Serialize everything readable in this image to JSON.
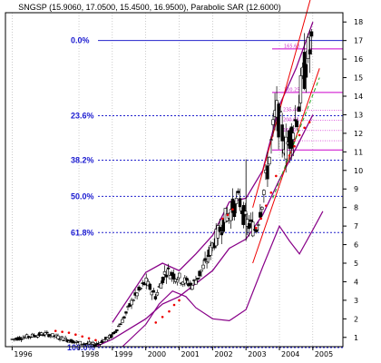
{
  "chart_data": {
    "type": "bar",
    "title": "SNGSP (15.9060, 17.0500, 15.4500, 16.9500), Parabolic SAR (12.6000)",
    "x_tick_labels": [
      "1996",
      "1998",
      "1999",
      "2000",
      "2001",
      "2002",
      "2003",
      "2004",
      "2005"
    ],
    "y_tick_labels": [
      "1",
      "2",
      "3",
      "4",
      "5",
      "6",
      "7",
      "8",
      "9",
      "10",
      "11",
      "12",
      "13",
      "14",
      "15",
      "16",
      "17",
      "18"
    ],
    "ylim": [
      0.5,
      18.5
    ],
    "fib_levels": [
      {
        "label": "0.0%",
        "value": 17.0
      },
      {
        "label": "23.6%",
        "value": 12.95
      },
      {
        "label": "38.2%",
        "value": 10.55
      },
      {
        "label": "50.0%",
        "value": 8.6
      },
      {
        "label": "61.8%",
        "value": 6.65
      },
      {
        "label": "100.0%",
        "value": 0.45
      }
    ],
    "resistance_lines": [
      {
        "label": "165.63",
        "value": 16.55
      },
      {
        "label": "100.25",
        "value": 14.2
      },
      {
        "label": "",
        "value": 11.1
      }
    ],
    "small_level_labels": [
      "235.46",
      "200.63",
      "160.0",
      "138.2"
    ],
    "price_series": [
      {
        "date": 1996.0,
        "close": 0.9
      },
      {
        "date": 1996.5,
        "close": 1.05
      },
      {
        "date": 1997.0,
        "close": 1.2
      },
      {
        "date": 1997.5,
        "close": 0.95
      },
      {
        "date": 1998.0,
        "close": 0.7
      },
      {
        "date": 1998.5,
        "close": 0.6
      },
      {
        "date": 1999.0,
        "close": 1.1
      },
      {
        "date": 1999.3,
        "close": 1.9
      },
      {
        "date": 1999.6,
        "close": 3.0
      },
      {
        "date": 2000.0,
        "close": 4.0
      },
      {
        "date": 2000.3,
        "close": 3.2
      },
      {
        "date": 2000.6,
        "close": 4.6
      },
      {
        "date": 2001.0,
        "close": 4.2
      },
      {
        "date": 2001.4,
        "close": 3.8
      },
      {
        "date": 2001.8,
        "close": 5.0
      },
      {
        "date": 2002.0,
        "close": 6.0
      },
      {
        "date": 2002.4,
        "close": 7.5
      },
      {
        "date": 2002.8,
        "close": 8.4
      },
      {
        "date": 2003.0,
        "close": 7.2
      },
      {
        "date": 2003.3,
        "close": 6.8
      },
      {
        "date": 2003.6,
        "close": 9.5
      },
      {
        "date": 2003.9,
        "close": 13.2
      },
      {
        "date": 2004.2,
        "close": 11.2
      },
      {
        "date": 2004.5,
        "close": 12.8
      },
      {
        "date": 2004.8,
        "close": 15.9
      },
      {
        "date": 2005.0,
        "close": 16.95
      }
    ],
    "parabolic_sar": [
      {
        "date": 1997.3,
        "value": 1.35
      },
      {
        "date": 1997.5,
        "value": 1.3
      },
      {
        "date": 1997.7,
        "value": 1.25
      },
      {
        "date": 1997.9,
        "value": 1.15
      },
      {
        "date": 1998.1,
        "value": 1.05
      },
      {
        "date": 1998.3,
        "value": 0.95
      },
      {
        "date": 1998.5,
        "value": 0.85
      },
      {
        "date": 2000.3,
        "value": 1.8
      },
      {
        "date": 2000.5,
        "value": 2.1
      },
      {
        "date": 2000.7,
        "value": 2.4
      },
      {
        "date": 2000.85,
        "value": 2.75
      },
      {
        "date": 2001.0,
        "value": 3.0
      },
      {
        "date": 2002.3,
        "value": 7.4
      },
      {
        "date": 2002.45,
        "value": 7.6
      },
      {
        "date": 2002.6,
        "value": 7.9
      },
      {
        "date": 2003.3,
        "value": 6.9
      },
      {
        "date": 2003.45,
        "value": 7.4
      },
      {
        "date": 2003.6,
        "value": 8.1
      },
      {
        "date": 2003.75,
        "value": 8.8
      },
      {
        "date": 2003.9,
        "value": 9.7
      },
      {
        "date": 2004.3,
        "value": 10.8
      },
      {
        "date": 2004.45,
        "value": 11.3
      },
      {
        "date": 2004.6,
        "value": 11.9
      },
      {
        "date": 2004.75,
        "value": 12.3
      },
      {
        "date": 2004.9,
        "value": 12.6
      }
    ],
    "upper_band": [
      {
        "date": 1999.0,
        "value": 1.8
      },
      {
        "date": 2000.0,
        "value": 4.5
      },
      {
        "date": 2000.5,
        "value": 5.0
      },
      {
        "date": 2001.0,
        "value": 4.6
      },
      {
        "date": 2001.5,
        "value": 5.5
      },
      {
        "date": 2002.0,
        "value": 6.5
      },
      {
        "date": 2002.5,
        "value": 8.3
      },
      {
        "date": 2003.0,
        "value": 8.5
      },
      {
        "date": 2003.5,
        "value": 10.0
      },
      {
        "date": 2004.0,
        "value": 13.5
      },
      {
        "date": 2004.5,
        "value": 15.5
      },
      {
        "date": 2005.0,
        "value": 18.0
      }
    ],
    "lower_band": [
      {
        "date": 1998.5,
        "value": 0.5
      },
      {
        "date": 1999.0,
        "value": 0.9
      },
      {
        "date": 2000.0,
        "value": 2.0
      },
      {
        "date": 2000.5,
        "value": 2.8
      },
      {
        "date": 2001.0,
        "value": 3.2
      },
      {
        "date": 2001.5,
        "value": 3.9
      },
      {
        "date": 2002.0,
        "value": 4.6
      },
      {
        "date": 2002.5,
        "value": 5.8
      },
      {
        "date": 2003.0,
        "value": 6.3
      },
      {
        "date": 2003.5,
        "value": 7.6
      },
      {
        "date": 2004.0,
        "value": 9.5
      },
      {
        "date": 2004.5,
        "value": 11.2
      },
      {
        "date": 2005.0,
        "value": 13.0
      }
    ],
    "oscillator": [
      {
        "date": 1999.3,
        "value": 0.5
      },
      {
        "date": 2000.0,
        "value": 1.7
      },
      {
        "date": 2000.4,
        "value": 2.8
      },
      {
        "date": 2000.8,
        "value": 3.5
      },
      {
        "date": 2001.2,
        "value": 3.2
      },
      {
        "date": 2001.5,
        "value": 2.6
      },
      {
        "date": 2002.0,
        "value": 2.0
      },
      {
        "date": 2002.5,
        "value": 1.9
      },
      {
        "date": 2003.0,
        "value": 2.5
      },
      {
        "date": 2003.5,
        "value": 4.8
      },
      {
        "date": 2004.0,
        "value": 7.0
      },
      {
        "date": 2004.3,
        "value": 6.2
      },
      {
        "date": 2004.6,
        "value": 5.5
      },
      {
        "date": 2005.0,
        "value": 6.8
      },
      {
        "date": 2005.3,
        "value": 7.8
      }
    ],
    "channel_upper": [
      {
        "date": 2003.2,
        "value": 8.0
      },
      {
        "date": 2005.2,
        "value": 21.0
      }
    ],
    "channel_lower": [
      {
        "date": 2003.2,
        "value": 5.0
      },
      {
        "date": 2005.2,
        "value": 15.5
      }
    ],
    "channel_mid_dashed": [
      {
        "date": 2003.8,
        "value": 8.5
      },
      {
        "date": 2005.2,
        "value": 15.0
      }
    ],
    "colors": {
      "candle": "#000000",
      "sar": "#ee0000",
      "band": "#880088",
      "channel": "#ee0000",
      "fib": "#2222cc",
      "resistance": "#cc00cc",
      "dashed_mid": "#22aa22",
      "grid": "#999999"
    },
    "grid": true
  }
}
